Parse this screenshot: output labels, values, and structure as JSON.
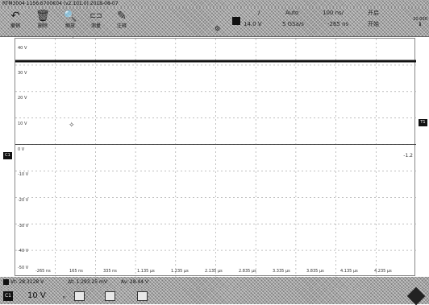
{
  "window": {
    "title": "RTM3004 1156.6700K04 (v2.101.0) 2018-08-07"
  },
  "toolbar": {
    "tools": [
      {
        "name": "undo",
        "label": "撤销",
        "icon": "undo-icon",
        "glyph": "↶"
      },
      {
        "name": "delete",
        "label": "删除",
        "icon": "trash-icon",
        "glyph": "🗑"
      },
      {
        "name": "zoom",
        "label": "缩放",
        "icon": "zoom-icon",
        "glyph": "🔍"
      },
      {
        "name": "measure",
        "label": "测量",
        "icon": "ruler-icon",
        "glyph": "⊏⊐"
      },
      {
        "name": "annotate",
        "label": "注释",
        "icon": "pen-icon",
        "glyph": "✎"
      }
    ],
    "trigger": {
      "mode_top": "/",
      "value": "14.0 V",
      "sweep_mode": "Auto",
      "sample_rate": "5 GSa/s"
    },
    "timebase": {
      "scale": "100 ns/",
      "position": "-265 ns"
    },
    "acq": {
      "top": "开启",
      "bottom": "开始"
    },
    "corner": {
      "top": "20.000",
      "bottom": "ℹ"
    }
  },
  "plot": {
    "y_labels": [
      "40 V",
      "30 V",
      "20 V",
      "10 V",
      "0 V",
      "-10 V",
      "-20 V",
      "-30 V",
      "-40 V",
      "-50 V"
    ],
    "x_labels": [
      "-265 ns",
      "165 ns",
      "335 ns",
      "1.135 µs",
      "1.235 µs",
      "2.135 µs",
      "2.835 µs",
      "3.335 µs",
      "3.835 µs",
      "4.135 µs",
      "4.235 µs"
    ],
    "ch_marker": "C1",
    "trig_marker": "T1",
    "t_label": "T",
    "right_level_label": "-1.2"
  },
  "chart_data": {
    "type": "line",
    "series": [
      {
        "values": [
          31.5,
          31.5
        ]
      }
    ],
    "x": [
      0,
      1
    ],
    "ylim": [
      -50,
      40
    ],
    "grid": true
  },
  "statusbar": {
    "ch_amp": "Vt: 28.3128 V",
    "cursor": "Δt: 1.293.25 mV",
    "avg": "Av: 28.44 V"
  },
  "bottombar": {
    "channel": "C1",
    "volts": "10 V",
    "flags": "n"
  }
}
